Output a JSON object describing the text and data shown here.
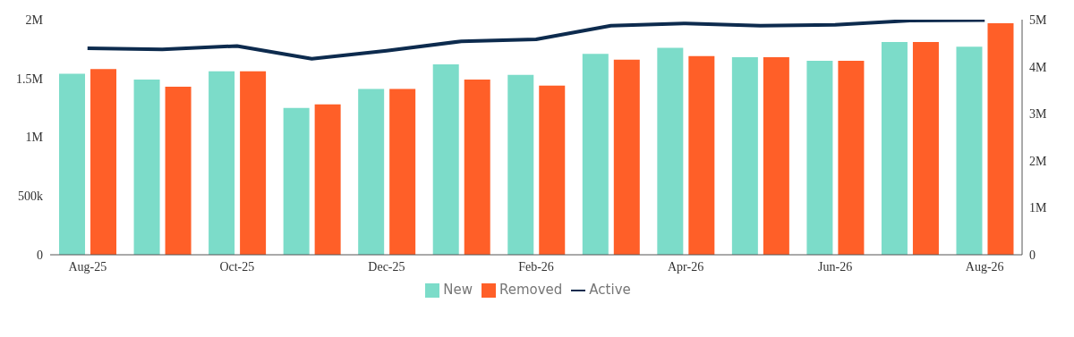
{
  "chart_data": {
    "type": "bar",
    "categories": [
      "Aug-25",
      null,
      "Oct-25",
      null,
      "Dec-25",
      null,
      "Feb-26",
      null,
      "Apr-26",
      null,
      "Jun-26",
      null,
      "Aug-26"
    ],
    "series": [
      {
        "name": "New",
        "color": "#7cdcc9",
        "values": [
          1540000,
          1490000,
          1560000,
          1250000,
          1410000,
          1620000,
          1530000,
          1710000,
          1760000,
          1680000,
          1650000,
          1810000,
          1770000
        ]
      },
      {
        "name": "Removed",
        "color": "#ff5f28",
        "values": [
          1580000,
          1430000,
          1560000,
          1280000,
          1410000,
          1490000,
          1440000,
          1660000,
          1690000,
          1680000,
          1650000,
          1810000,
          1970000
        ]
      },
      {
        "name": "Active",
        "type": "line",
        "axis": "y2",
        "color": "#0d2b4e",
        "values": [
          4390000,
          4370000,
          4440000,
          4170000,
          4340000,
          4540000,
          4580000,
          4870000,
          4920000,
          4870000,
          4890000,
          4980000,
          4990000
        ]
      }
    ],
    "ylim": [
      0,
      2000000
    ],
    "yticks": [
      0,
      {
        "value": 500000,
        "label": "500k"
      },
      {
        "value": 1000000,
        "label": "1M"
      },
      {
        "value": 1500000,
        "label": "1.5M"
      },
      {
        "value": 2000000,
        "label": "2M"
      }
    ],
    "y2lim": [
      0,
      5000000
    ],
    "y2ticks": [
      0,
      {
        "value": 1000000,
        "label": "1M"
      },
      {
        "value": 2000000,
        "label": "2M"
      },
      {
        "value": 3000000,
        "label": "3M"
      },
      {
        "value": 4000000,
        "label": "4M"
      },
      {
        "value": 5000000,
        "label": "5M"
      }
    ],
    "grid": false,
    "legend": "bottom",
    "marker": "none",
    "line_style": "solid"
  }
}
